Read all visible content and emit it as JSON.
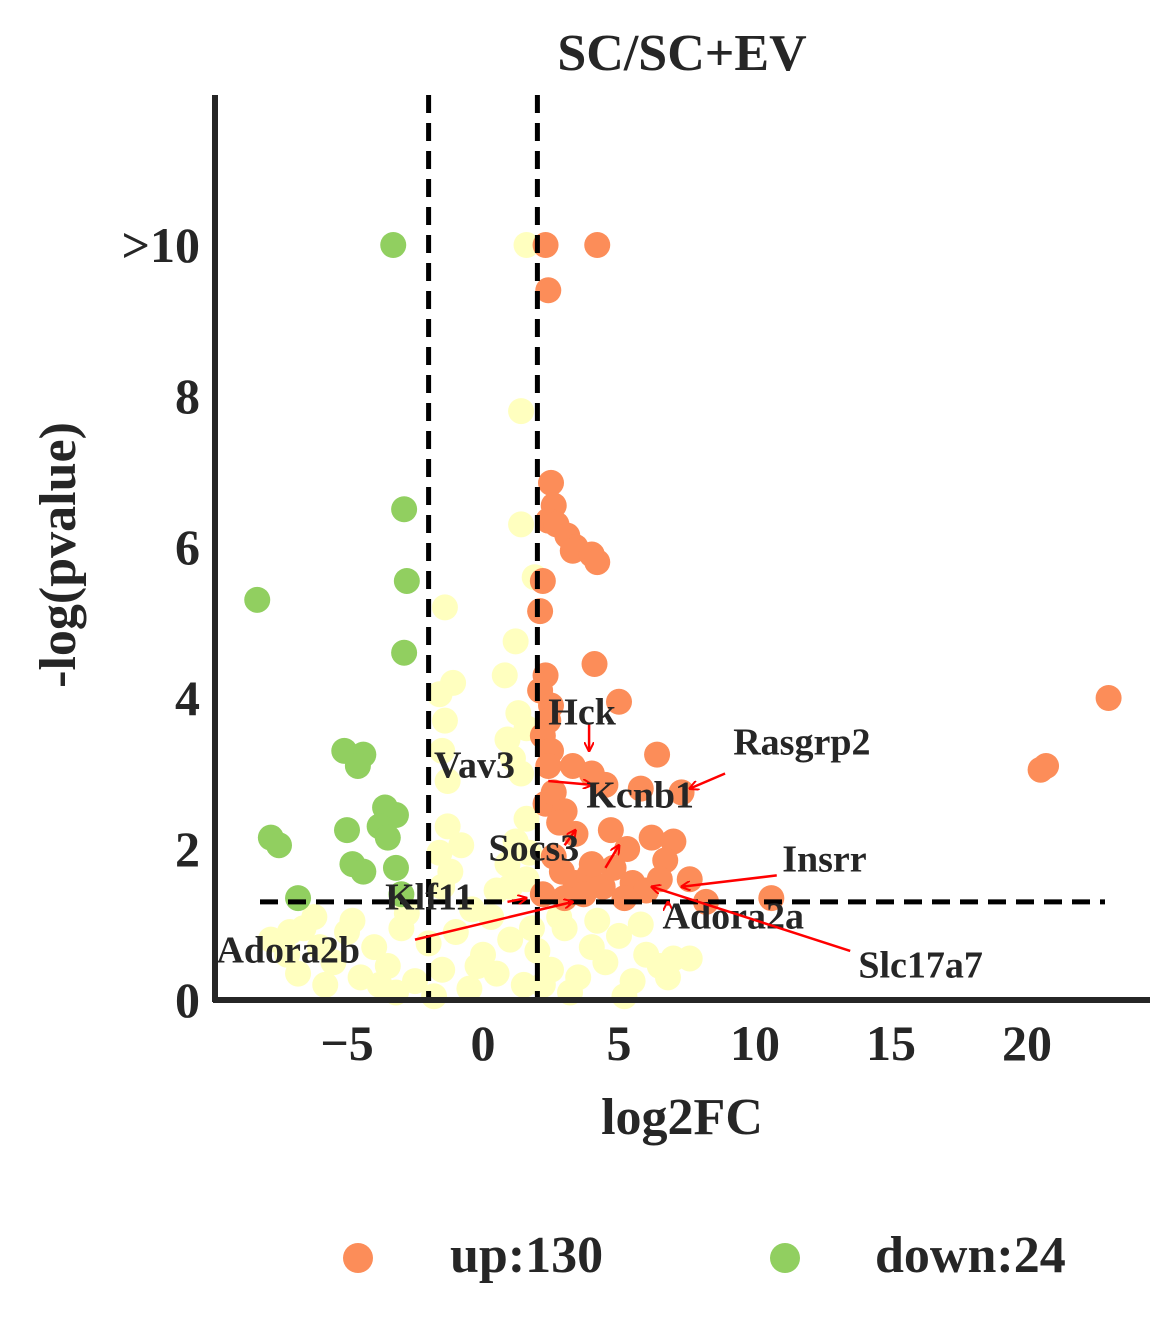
{
  "chart_data": {
    "type": "scatter",
    "title": "SC/SC+EV",
    "xlabel": "log2FC",
    "ylabel": "-log(pvalue)",
    "xlim": [
      -9.8,
      24.5
    ],
    "ylim": [
      0,
      12
    ],
    "xticks": [
      {
        "v": -5,
        "label": "−5"
      },
      {
        "v": 0,
        "label": "0"
      },
      {
        "v": 5,
        "label": "5"
      },
      {
        "v": 10,
        "label": "10"
      },
      {
        "v": 15,
        "label": "15"
      },
      {
        "v": 20,
        "label": "20"
      }
    ],
    "yticks": [
      {
        "v": 0,
        "label": "0"
      },
      {
        "v": 2,
        "label": "2"
      },
      {
        "v": 4,
        "label": "4"
      },
      {
        "v": 6,
        "label": "6"
      },
      {
        "v": 8,
        "label": "8"
      },
      {
        "v": 10,
        "label": ">10"
      }
    ],
    "thresholds": {
      "x": [
        -2,
        2
      ],
      "y": 1.3
    },
    "colors": {
      "up": "#fc8d59",
      "down": "#91cf60",
      "ns": "#ffffbf",
      "arrow": "#ff0000",
      "lines": "#000000"
    },
    "series": [
      {
        "key": "up",
        "name": "up:130",
        "points": [
          [
            2.3,
            10
          ],
          [
            4.2,
            10
          ],
          [
            2.4,
            9.4
          ],
          [
            23,
            4
          ],
          [
            20.7,
            3.1
          ],
          [
            20.5,
            3.05
          ],
          [
            2.5,
            6.85
          ],
          [
            2.6,
            6.55
          ],
          [
            2.4,
            6.35
          ],
          [
            2.7,
            6.3
          ],
          [
            3.1,
            6.15
          ],
          [
            3.4,
            6.0
          ],
          [
            3.3,
            5.95
          ],
          [
            4.0,
            5.9
          ],
          [
            4.2,
            5.8
          ],
          [
            2.2,
            5.55
          ],
          [
            2.1,
            5.15
          ],
          [
            4.1,
            4.45
          ],
          [
            2.3,
            4.3
          ],
          [
            2.1,
            4.1
          ],
          [
            2.5,
            3.9
          ],
          [
            5.0,
            3.95
          ],
          [
            2.4,
            3.7
          ],
          [
            2.2,
            3.5
          ],
          [
            2.5,
            3.3
          ],
          [
            2.4,
            3.1
          ],
          [
            3.3,
            3.1
          ],
          [
            4.0,
            3.0
          ],
          [
            6.4,
            3.25
          ],
          [
            7.3,
            2.75
          ],
          [
            4.5,
            2.85
          ],
          [
            5.8,
            2.8
          ],
          [
            2.3,
            2.6
          ],
          [
            2.6,
            2.75
          ],
          [
            3.0,
            2.5
          ],
          [
            2.8,
            2.35
          ],
          [
            3.4,
            2.2
          ],
          [
            4.7,
            2.25
          ],
          [
            5.3,
            2.0
          ],
          [
            6.2,
            2.15
          ],
          [
            7.0,
            2.1
          ],
          [
            6.7,
            1.85
          ],
          [
            7.6,
            1.6
          ],
          [
            2.6,
            1.9
          ],
          [
            2.9,
            1.7
          ],
          [
            3.4,
            1.55
          ],
          [
            3.9,
            1.65
          ],
          [
            4.4,
            1.5
          ],
          [
            4.8,
            1.75
          ],
          [
            5.5,
            1.55
          ],
          [
            6.0,
            1.45
          ],
          [
            6.5,
            1.6
          ],
          [
            8.2,
            1.3
          ],
          [
            10.6,
            1.35
          ],
          [
            2.2,
            1.4
          ],
          [
            3.0,
            1.35
          ],
          [
            3.7,
            1.4
          ],
          [
            5.2,
            1.35
          ],
          [
            4.0,
            1.8
          ]
        ]
      },
      {
        "key": "down",
        "name": "down:24",
        "points": [
          [
            -3.3,
            10
          ],
          [
            -8.3,
            5.3
          ],
          [
            -2.9,
            6.5
          ],
          [
            -2.8,
            5.55
          ],
          [
            -2.9,
            4.6
          ],
          [
            -5.1,
            3.3
          ],
          [
            -4.4,
            3.25
          ],
          [
            -4.6,
            3.1
          ],
          [
            -3.6,
            2.55
          ],
          [
            -3.2,
            2.45
          ],
          [
            -3.8,
            2.3
          ],
          [
            -3.5,
            2.15
          ],
          [
            -5.0,
            2.25
          ],
          [
            -7.8,
            2.15
          ],
          [
            -7.5,
            2.05
          ],
          [
            -3.2,
            1.75
          ],
          [
            -4.8,
            1.8
          ],
          [
            -4.4,
            1.7
          ],
          [
            -6.8,
            1.35
          ],
          [
            -3.0,
            1.4
          ]
        ]
      },
      {
        "key": "ns",
        "name": "",
        "points": [
          [
            1.6,
            10
          ],
          [
            1.4,
            7.8
          ],
          [
            1.4,
            6.3
          ],
          [
            1.9,
            5.6
          ],
          [
            -1.4,
            5.2
          ],
          [
            1.2,
            4.75
          ],
          [
            0.8,
            4.3
          ],
          [
            -1.1,
            4.2
          ],
          [
            -1.6,
            4.05
          ],
          [
            -1.4,
            3.7
          ],
          [
            1.3,
            3.8
          ],
          [
            0.9,
            3.45
          ],
          [
            1.6,
            3.6
          ],
          [
            1.1,
            3.2
          ],
          [
            1.4,
            3.0
          ],
          [
            -1.5,
            3.3
          ],
          [
            -1.3,
            2.9
          ],
          [
            1.6,
            2.4
          ],
          [
            1.2,
            2.1
          ],
          [
            0.9,
            1.8
          ],
          [
            1.7,
            1.95
          ],
          [
            -1.3,
            2.3
          ],
          [
            -1.6,
            1.95
          ],
          [
            -0.8,
            2.05
          ],
          [
            -1.2,
            1.7
          ],
          [
            -1.5,
            1.5
          ],
          [
            1.0,
            1.5
          ],
          [
            0.5,
            1.45
          ],
          [
            1.6,
            1.6
          ],
          [
            -6.2,
            1.1
          ],
          [
            -6.6,
            0.95
          ],
          [
            -7.1,
            0.9
          ],
          [
            -7.8,
            0.8
          ],
          [
            -7.2,
            0.6
          ],
          [
            -6.0,
            0.7
          ],
          [
            -5.5,
            0.5
          ],
          [
            -5.0,
            0.9
          ],
          [
            -4.5,
            0.3
          ],
          [
            -4.0,
            0.7
          ],
          [
            -3.5,
            0.45
          ],
          [
            -3.0,
            0.95
          ],
          [
            -2.5,
            0.25
          ],
          [
            -2.0,
            0.75
          ],
          [
            -1.5,
            0.4
          ],
          [
            -1.0,
            0.9
          ],
          [
            -0.5,
            0.15
          ],
          [
            0.0,
            0.6
          ],
          [
            0.5,
            0.35
          ],
          [
            1.0,
            0.8
          ],
          [
            1.5,
            0.2
          ],
          [
            2.0,
            0.65
          ],
          [
            2.5,
            0.4
          ],
          [
            3.0,
            0.95
          ],
          [
            3.5,
            0.3
          ],
          [
            4.0,
            0.7
          ],
          [
            4.5,
            0.5
          ],
          [
            5.0,
            0.85
          ],
          [
            5.5,
            0.25
          ],
          [
            6.0,
            0.6
          ],
          [
            6.5,
            0.45
          ],
          [
            7.0,
            0.55
          ],
          [
            7.6,
            0.55
          ],
          [
            -5.8,
            0.2
          ],
          [
            -3.2,
            0.1
          ],
          [
            0.3,
            1.1
          ],
          [
            2.8,
            1.1
          ],
          [
            4.2,
            1.05
          ],
          [
            5.8,
            1.0
          ],
          [
            -4.8,
            1.05
          ],
          [
            -2.8,
            1.15
          ],
          [
            -0.4,
            1.2
          ],
          [
            1.8,
            0.95
          ],
          [
            6.8,
            0.3
          ],
          [
            -6.8,
            0.35
          ],
          [
            -1.8,
            0.05
          ],
          [
            3.2,
            0.1
          ],
          [
            5.2,
            0.05
          ],
          [
            -0.2,
            0.45
          ],
          [
            -3.8,
            0.2
          ],
          [
            2.2,
            0.2
          ]
        ]
      }
    ],
    "annotations": [
      {
        "label": "Hck",
        "pt": [
          3.9,
          3.3
        ],
        "lbl": [
          2.4,
          3.65
        ],
        "arrow_from": [
          3.9,
          3.65
        ]
      },
      {
        "label": "Rasgrp2",
        "pt": [
          7.6,
          2.8
        ],
        "lbl": [
          9.2,
          3.25
        ],
        "arrow_from": [
          8.9,
          3.0
        ]
      },
      {
        "label": "Vav3",
        "pt": [
          4.0,
          2.85
        ],
        "lbl": [
          -1.8,
          2.95
        ],
        "arrow_from": [
          2.4,
          2.9
        ]
      },
      {
        "label": "Kcnb1",
        "pt": [
          3.4,
          2.25
        ],
        "lbl": [
          3.8,
          2.55
        ],
        "arrow_from": [
          3.0,
          2.05
        ]
      },
      {
        "label": "Socs3",
        "pt": [
          5.0,
          2.05
        ],
        "lbl": [
          0.2,
          1.85
        ],
        "arrow_from": [
          4.5,
          1.75
        ]
      },
      {
        "label": "Insrr",
        "pt": [
          7.3,
          1.5
        ],
        "lbl": [
          11.0,
          1.7
        ],
        "arrow_from": [
          10.8,
          1.65
        ]
      },
      {
        "label": "Klf11",
        "pt": [
          1.6,
          1.35
        ],
        "lbl": [
          -3.6,
          1.2
        ],
        "arrow_from": [
          0.9,
          1.3
        ]
      },
      {
        "label": "Adora2a",
        "pt": [
          6.8,
          1.3
        ],
        "lbl": [
          6.6,
          0.95
        ],
        "arrow_from": [
          6.8,
          1.25
        ]
      },
      {
        "label": "Adora2b",
        "pt": [
          3.3,
          1.3
        ],
        "lbl": [
          -9.8,
          0.5
        ],
        "arrow_from": [
          -2.5,
          0.8
        ]
      },
      {
        "label": "Slc17a7",
        "pt": [
          6.2,
          1.5
        ],
        "lbl": [
          13.8,
          0.3
        ],
        "arrow_from": [
          13.5,
          0.65
        ]
      }
    ]
  }
}
